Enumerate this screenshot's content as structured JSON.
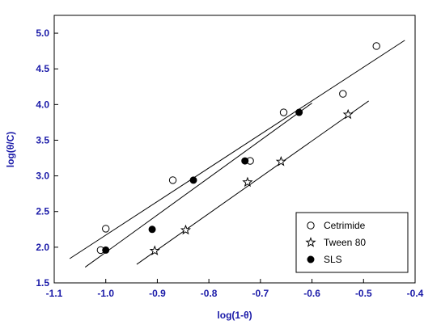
{
  "chart_data": {
    "type": "scatter",
    "title": "",
    "xlabel": "log(1-θ)",
    "ylabel": "log(θ/C)",
    "xlim": [
      -1.1,
      -0.4
    ],
    "ylim": [
      1.5,
      5.25
    ],
    "xticks": [
      -1.1,
      -1.0,
      -0.9,
      -0.8,
      -0.7,
      -0.6,
      -0.5,
      -0.4
    ],
    "xtick_labels": [
      "-1.1",
      "-1.0",
      "-0.9",
      "-0.8",
      "-0.7",
      "-0.6",
      "-0.5",
      "-0.4"
    ],
    "yticks": [
      1.5,
      2.0,
      2.5,
      3.0,
      3.5,
      4.0,
      4.5,
      5.0
    ],
    "ytick_labels": [
      "1.5",
      "2.0",
      "2.5",
      "3.0",
      "3.5",
      "4.0",
      "4.5",
      "5.0"
    ],
    "grid": false,
    "legend_position": "bottom-right",
    "series": [
      {
        "name": "Cetrimide",
        "marker": "open-circle",
        "x": [
          -1.01,
          -1.0,
          -0.87,
          -0.72,
          -0.655,
          -0.54,
          -0.475
        ],
        "y": [
          1.96,
          2.26,
          2.94,
          3.21,
          3.89,
          4.15,
          4.82
        ],
        "fit": {
          "x": [
            -1.07,
            -0.42
          ],
          "y": [
            1.84,
            4.9
          ]
        }
      },
      {
        "name": "Tween 80",
        "marker": "open-star",
        "x": [
          -0.905,
          -0.845,
          -0.725,
          -0.66,
          -0.53
        ],
        "y": [
          1.95,
          2.24,
          2.91,
          3.2,
          3.86
        ],
        "fit": {
          "x": [
            -0.94,
            -0.49
          ],
          "y": [
            1.76,
            4.05
          ]
        }
      },
      {
        "name": "SLS",
        "marker": "filled-circle",
        "x": [
          -1.0,
          -0.91,
          -0.83,
          -0.73,
          -0.625
        ],
        "y": [
          1.96,
          2.25,
          2.94,
          3.21,
          3.89
        ],
        "fit": {
          "x": [
            -1.04,
            -0.6
          ],
          "y": [
            1.72,
            4.02
          ]
        }
      }
    ]
  }
}
